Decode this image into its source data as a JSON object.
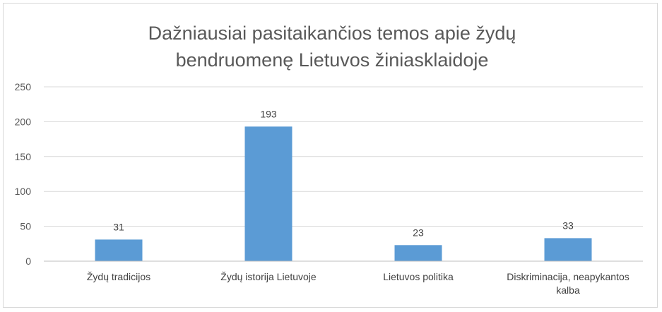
{
  "chart_data": {
    "type": "bar",
    "title_lines": [
      "Dažniausiai pasitaikančios temos apie žydų",
      "bendruomenę Lietuvos žiniasklaidoje"
    ],
    "categories": [
      [
        "Žydų tradicijos"
      ],
      [
        "Žydų istorija Lietuvoje"
      ],
      [
        "Lietuvos politika"
      ],
      [
        "Diskriminacija, neapykantos",
        "kalba"
      ]
    ],
    "values": [
      31,
      193,
      23,
      33
    ],
    "data_labels": [
      "31",
      "193",
      "23",
      "33"
    ],
    "yticks": [
      "0",
      "50",
      "100",
      "150",
      "200",
      "250"
    ],
    "ylim": [
      0,
      250
    ],
    "grid": true,
    "legend": "none",
    "bar_color": "#5b9bd5",
    "grid_color": "#d9d9d9"
  }
}
